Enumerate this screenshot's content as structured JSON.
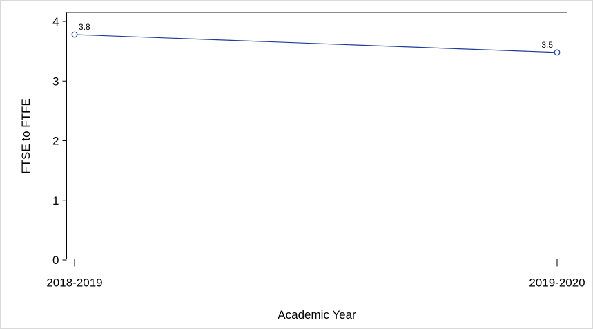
{
  "chart_data": {
    "type": "line",
    "title": "",
    "xlabel": "Academic Year",
    "ylabel": "FTSE to FTFE",
    "categories": [
      "2018-2019",
      "2019-2020"
    ],
    "series": [
      {
        "values": [
          3.78,
          3.48
        ],
        "data_labels": [
          "3.8",
          "3.5"
        ],
        "color": "#1f3c99",
        "marker": "open-circle"
      }
    ],
    "ylim": [
      0,
      4
    ],
    "yticks": [
      0,
      1,
      2,
      3,
      4
    ],
    "grid": false,
    "legend": "none"
  }
}
